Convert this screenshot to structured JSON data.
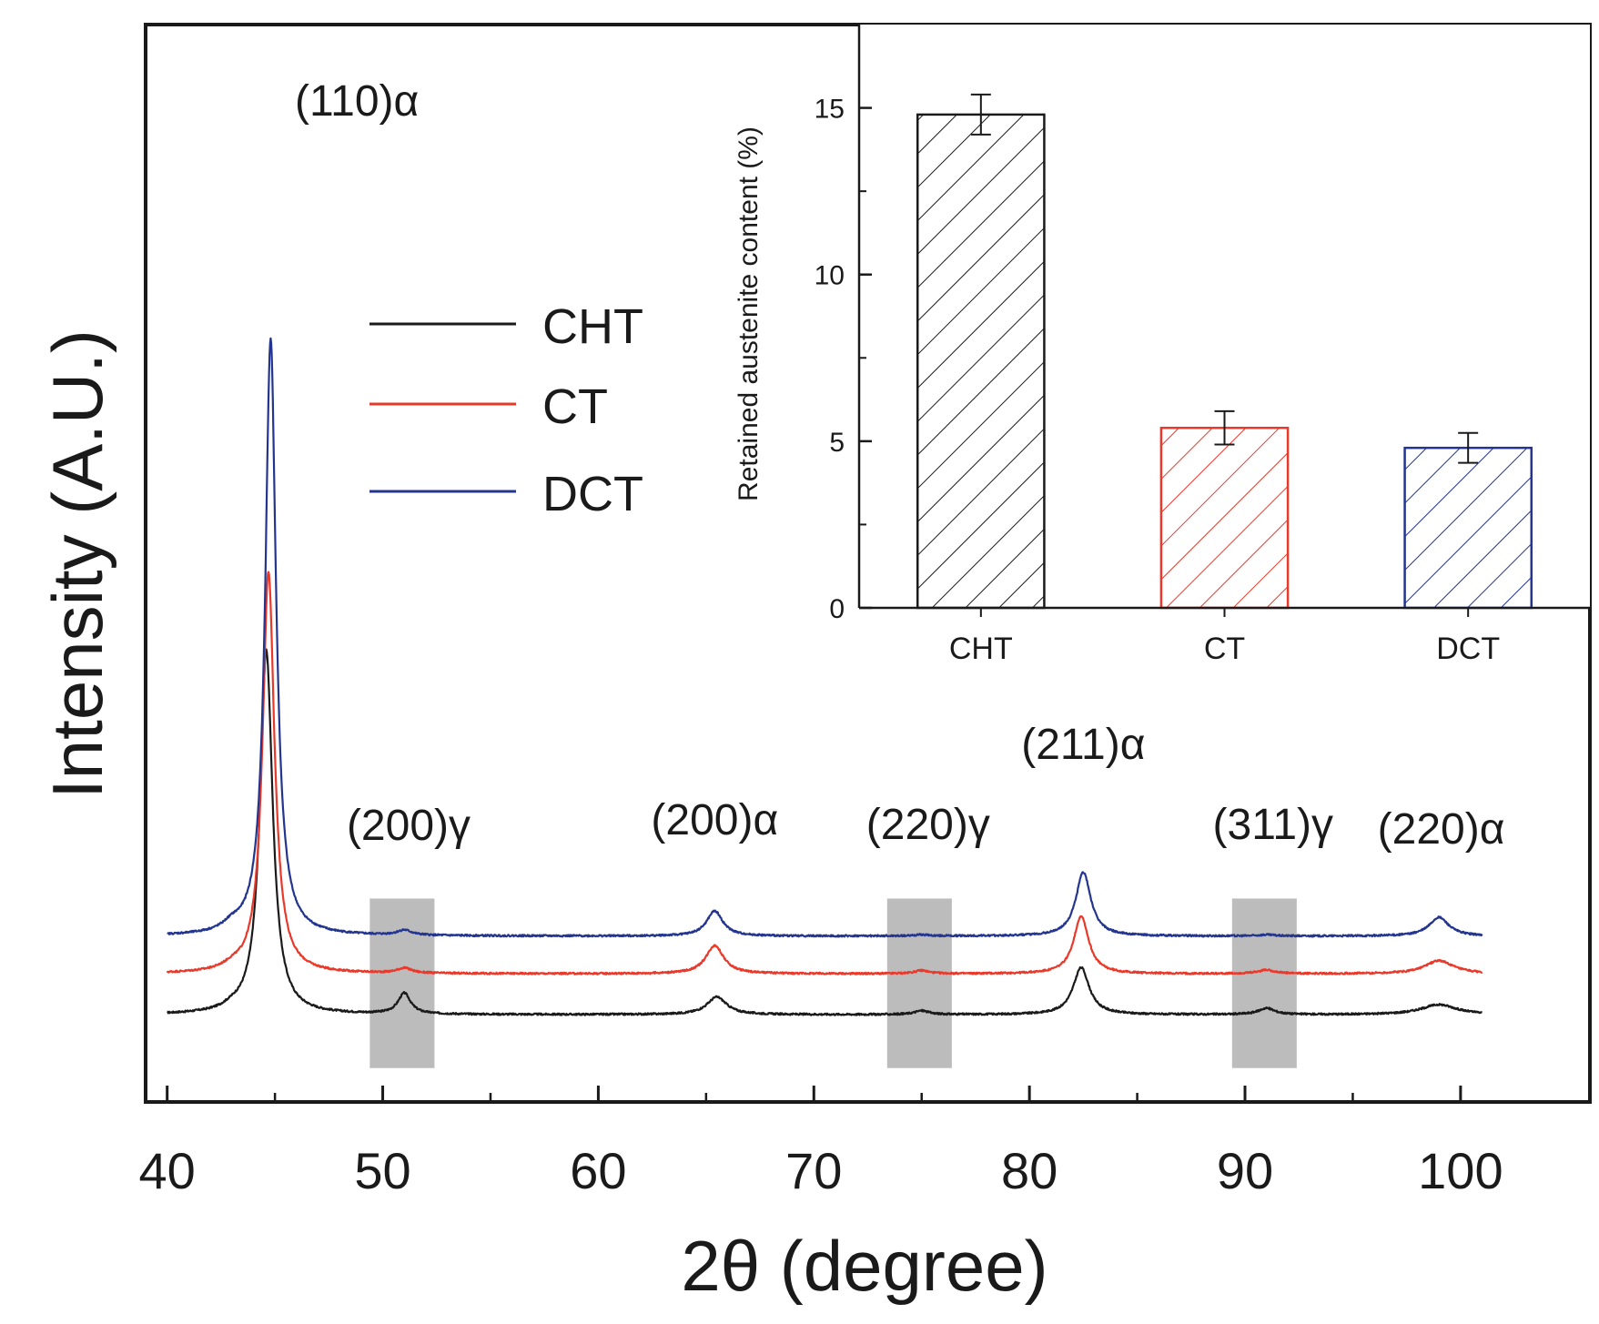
{
  "chart_data": [
    {
      "type": "line",
      "title": "",
      "xlabel": "2θ (degree)",
      "ylabel": "Intensity (A.U.)",
      "xlim": [
        39,
        106
      ],
      "x_ticks": [
        40,
        50,
        60,
        70,
        80,
        90,
        100
      ],
      "x_tick_labels": [
        "40",
        "50",
        "60",
        "70",
        "80",
        "90",
        "100"
      ],
      "x_minor_ticks": [
        45,
        55,
        65,
        75,
        85,
        95
      ],
      "y_ticks_shown": false,
      "legend": {
        "placement": "upper-left",
        "entries": [
          "CHT",
          "CT",
          "DCT"
        ]
      },
      "series": [
        {
          "name": "CHT",
          "color": "#1a1a1a",
          "baseline": 1.0,
          "peaks": [
            [
              43.0,
              0.5,
              0.5
            ],
            [
              44.6,
              58.0,
              0.35
            ],
            [
              51.0,
              3.3,
              0.35
            ],
            [
              65.5,
              2.8,
              0.55
            ],
            [
              75.0,
              0.6,
              0.4
            ],
            [
              82.4,
              7.5,
              0.45
            ],
            [
              91.0,
              1.0,
              0.45
            ],
            [
              99.0,
              1.6,
              1.0
            ]
          ]
        },
        {
          "name": "CT",
          "color": "#e8392b",
          "baseline": 7.5,
          "peaks": [
            [
              43.0,
              0.6,
              0.5
            ],
            [
              44.7,
              64.0,
              0.33
            ],
            [
              51.0,
              0.8,
              0.4
            ],
            [
              65.4,
              4.5,
              0.5
            ],
            [
              75.0,
              0.5,
              0.4
            ],
            [
              82.4,
              9.2,
              0.42
            ],
            [
              91.0,
              0.6,
              0.45
            ],
            [
              99.0,
              2.1,
              0.8
            ]
          ]
        },
        {
          "name": "DCT",
          "color": "#23358f",
          "baseline": 13.5,
          "peaks": [
            [
              43.0,
              1.0,
              0.5
            ],
            [
              44.8,
              95.0,
              0.3
            ],
            [
              51.0,
              0.8,
              0.4
            ],
            [
              65.4,
              4.0,
              0.45
            ],
            [
              75.0,
              0.2,
              0.4
            ],
            [
              82.5,
              10.2,
              0.42
            ],
            [
              91.0,
              0.2,
              0.45
            ],
            [
              99.0,
              3.0,
              0.55
            ]
          ]
        }
      ],
      "shaded_regions": [
        {
          "label": "(200)γ",
          "x_range": [
            49.4,
            52.4
          ]
        },
        {
          "label": "(220)γ",
          "x_range": [
            73.4,
            76.4
          ]
        },
        {
          "label": "(311)γ",
          "x_range": [
            89.4,
            92.4
          ]
        }
      ],
      "peak_labels": [
        {
          "text": "(110)α",
          "x": 48.8
        },
        {
          "text": "(200)γ",
          "x": 51.2
        },
        {
          "text": "(200)α",
          "x": 65.4
        },
        {
          "text": "(220)γ",
          "x": 75.3
        },
        {
          "text": "(211)α",
          "x": 82.5
        },
        {
          "text": "(311)γ",
          "x": 91.3
        },
        {
          "text": "(220)α",
          "x": 99.1
        }
      ]
    },
    {
      "type": "bar",
      "title": "",
      "xlabel": "",
      "ylabel": "Retained austenite content (%)",
      "categories": [
        "CHT",
        "CT",
        "DCT"
      ],
      "values": [
        14.8,
        5.4,
        4.8
      ],
      "errors": [
        0.6,
        0.5,
        0.45
      ],
      "colors": [
        "#1a1a1a",
        "#e8392b",
        "#23358f"
      ],
      "hatch": "diagonal",
      "ylim": [
        0,
        17.5
      ],
      "y_ticks": [
        0,
        5,
        10,
        15
      ],
      "y_tick_labels": [
        "0",
        "5",
        "10",
        "15"
      ]
    }
  ]
}
